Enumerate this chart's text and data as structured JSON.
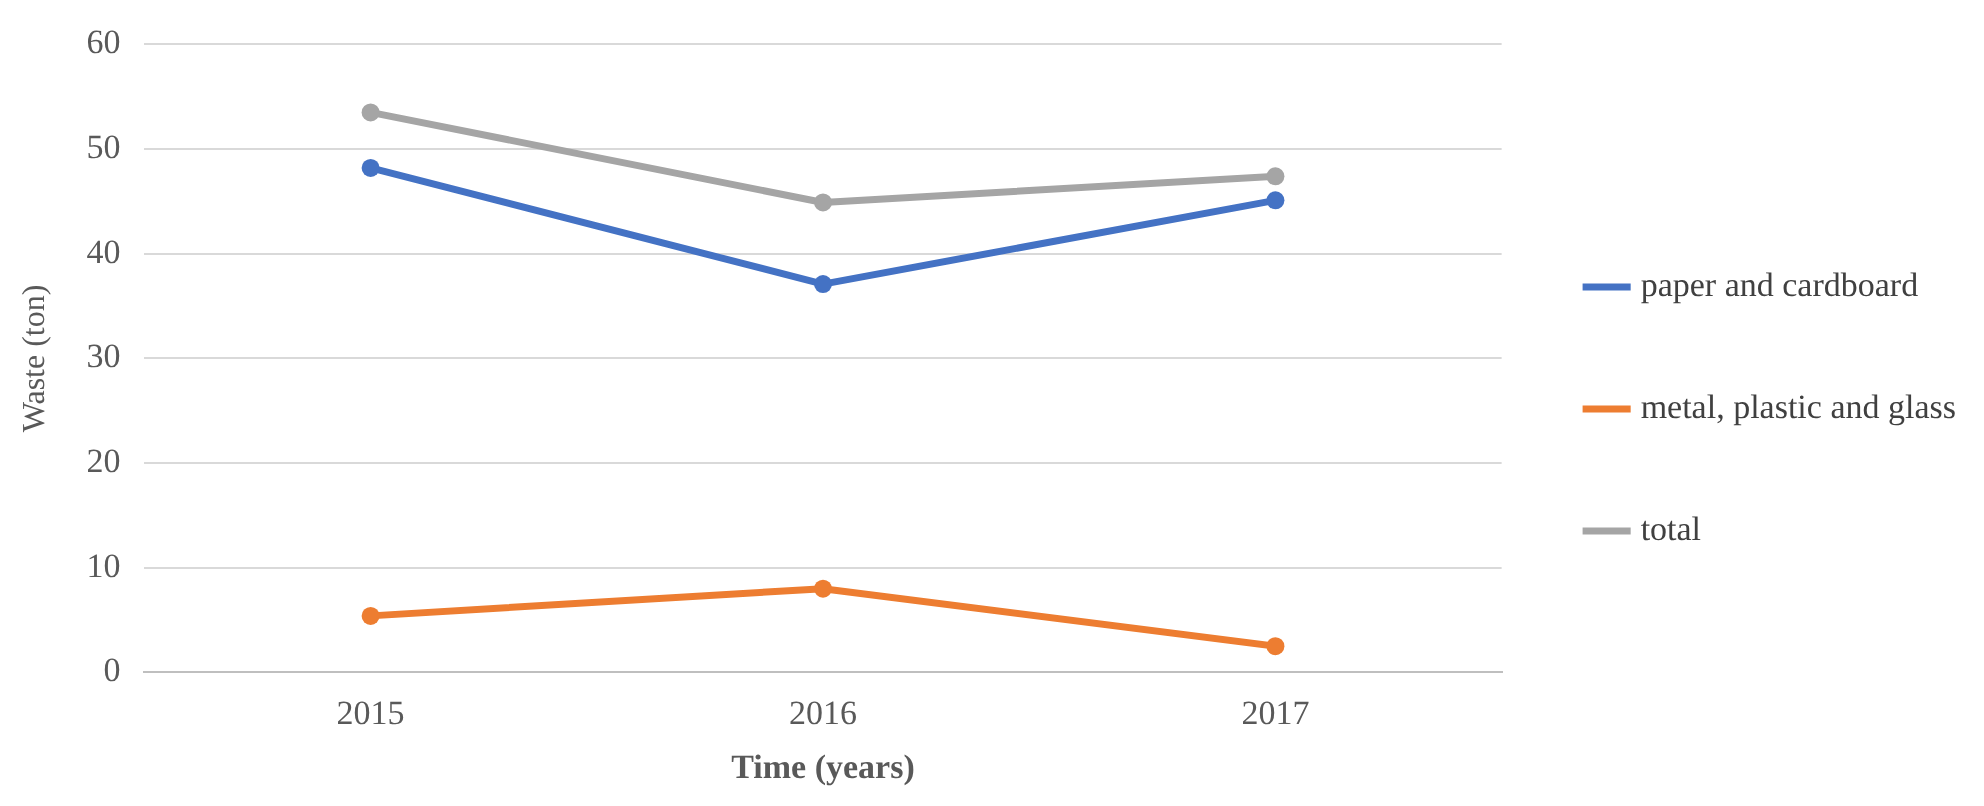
{
  "chart_data": {
    "type": "line",
    "xlabel": "Time (years)",
    "ylabel": "Waste (ton)",
    "categories": [
      "2015",
      "2016",
      "2017"
    ],
    "series": [
      {
        "name": "paper and cardboard",
        "color": "#4472c4",
        "values": [
          48.2,
          37.1,
          45.1
        ]
      },
      {
        "name": "metal, plastic and glass",
        "color": "#ed7d31",
        "values": [
          5.4,
          8.0,
          2.5
        ]
      },
      {
        "name": "total",
        "color": "#a5a5a5",
        "values": [
          53.5,
          44.9,
          47.4
        ]
      }
    ],
    "ylim": [
      0,
      60
    ],
    "yticks": [
      0,
      10,
      20,
      30,
      40,
      50,
      60
    ],
    "grid": "y",
    "legend": "right",
    "marker": "circle",
    "line_style": "solid"
  }
}
